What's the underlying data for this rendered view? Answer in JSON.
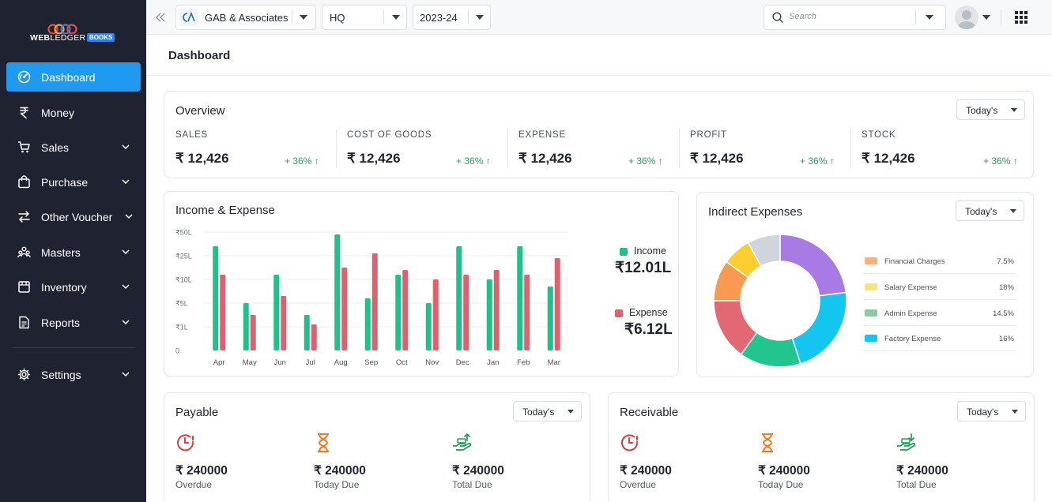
{
  "sidebar": {
    "logo": {
      "word_bold": "WEB",
      "word_thin": "LEDGER",
      "badge": "BOOKS"
    },
    "items": [
      {
        "label": "Dashboard",
        "icon": "gauge-icon",
        "active": true,
        "has_submenu": false
      },
      {
        "label": "Money",
        "icon": "rupee-icon",
        "active": false,
        "has_submenu": false
      },
      {
        "label": "Sales",
        "icon": "cart-icon",
        "active": false,
        "has_submenu": true
      },
      {
        "label": "Purchase",
        "icon": "bag-icon",
        "active": false,
        "has_submenu": true
      },
      {
        "label": "Other Voucher",
        "icon": "swap-icon",
        "active": false,
        "has_submenu": true
      },
      {
        "label": "Masters",
        "icon": "users-icon",
        "active": false,
        "has_submenu": true
      },
      {
        "label": "Inventory",
        "icon": "box-icon",
        "active": false,
        "has_submenu": true
      },
      {
        "label": "Reports",
        "icon": "report-icon",
        "active": false,
        "has_submenu": true
      },
      {
        "label": "Settings",
        "icon": "gear-icon",
        "active": false,
        "has_submenu": true
      }
    ]
  },
  "topbar": {
    "company": "GAB & Associates",
    "branch": "HQ",
    "year": "2023-24",
    "search_placeholder": "Search"
  },
  "page": {
    "title": "Dashboard"
  },
  "overview": {
    "title": "Overview",
    "period": "Today's",
    "items": [
      {
        "label": "SALES",
        "value": "₹ 12,426",
        "change": "+ 36% ↑"
      },
      {
        "label": "COST OF GOODS",
        "value": "₹ 12,426",
        "change": "+ 36% ↑"
      },
      {
        "label": "EXPENSE",
        "value": "₹ 12,426",
        "change": "+ 36% ↑"
      },
      {
        "label": "PROFIT",
        "value": "₹ 12,426",
        "change": "+ 36% ↑"
      },
      {
        "label": "STOCK",
        "value": "₹ 12,426",
        "change": "+ 36% ↑"
      }
    ]
  },
  "income_expense": {
    "title": "Income & Expense",
    "legend": [
      {
        "name": "Income",
        "value": "₹12.01L",
        "color": "#1fc08a"
      },
      {
        "name": "Expense",
        "value": "₹6.12L",
        "color": "#e0616e"
      }
    ]
  },
  "indirect_expenses": {
    "title": "Indirect Expenses",
    "period": "Today's",
    "legend": [
      {
        "name": "Financial Charges",
        "pct": "7.5%",
        "color": "#f8b07a"
      },
      {
        "name": "Salary Expense",
        "pct": "18%",
        "color": "#fde27a"
      },
      {
        "name": "Admin Expense",
        "pct": "14.5%",
        "color": "#8dcaa0"
      },
      {
        "name": "Factory Expense",
        "pct": "16%",
        "color": "#11c6f0"
      }
    ]
  },
  "payable": {
    "title": "Payable",
    "period": "Today's",
    "items": [
      {
        "amount": "₹ 240000",
        "label": "Overdue",
        "icon": "clock-alert-icon"
      },
      {
        "amount": "₹ 240000",
        "label": "Today Due",
        "icon": "hourglass-icon"
      },
      {
        "amount": "₹ 240000",
        "label": "Total Due",
        "icon": "hand-money-up-icon"
      }
    ]
  },
  "receivable": {
    "title": "Receivable",
    "period": "Today's",
    "items": [
      {
        "amount": "₹ 240000",
        "label": "Overdue",
        "icon": "clock-alert-icon"
      },
      {
        "amount": "₹ 240000",
        "label": "Today Due",
        "icon": "hourglass-icon"
      },
      {
        "amount": "₹ 240000",
        "label": "Total Due",
        "icon": "hand-money-down-icon"
      }
    ]
  },
  "chart_data": [
    {
      "type": "bar",
      "title": "Income & Expense",
      "categories": [
        "Apr",
        "May",
        "Jun",
        "Jul",
        "Aug",
        "Sep",
        "Oct",
        "Nov",
        "Dec",
        "Jan",
        "Feb",
        "Mar"
      ],
      "y_ticks": [
        "₹50L",
        "₹25L",
        "₹10L",
        "₹5L",
        "₹1L",
        "0"
      ],
      "series": [
        {
          "name": "Income",
          "color": "#1fc08a",
          "values": [
            4.4,
            2.0,
            3.2,
            1.5,
            4.9,
            2.2,
            3.2,
            2.0,
            4.4,
            3.0,
            4.4,
            2.7
          ]
        },
        {
          "name": "Expense",
          "color": "#e0616e",
          "values": [
            3.2,
            1.5,
            2.3,
            1.1,
            3.5,
            4.1,
            3.4,
            3.0,
            3.2,
            3.4,
            3.2,
            3.9
          ]
        }
      ],
      "grid": true
    },
    {
      "type": "pie",
      "title": "Indirect Expenses",
      "donut": true,
      "slices": [
        {
          "value": 23,
          "color": "#a77be3"
        },
        {
          "value": 22,
          "color": "#13c6ef"
        },
        {
          "value": 15,
          "color": "#22c58e"
        },
        {
          "value": 15,
          "color": "#e26973"
        },
        {
          "value": 10,
          "color": "#f89b50"
        },
        {
          "value": 7,
          "color": "#fcce2e"
        },
        {
          "value": 8,
          "color": "#cfd5dc"
        }
      ]
    }
  ]
}
